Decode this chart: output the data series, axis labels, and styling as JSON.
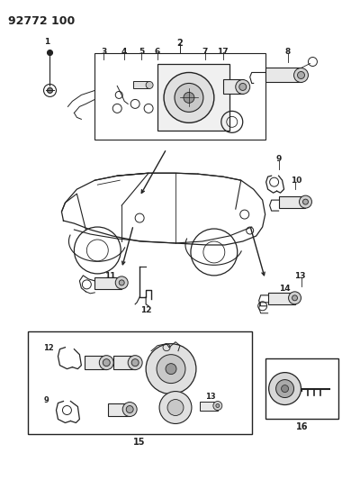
{
  "bg_color": "#ffffff",
  "fig_width": 3.9,
  "fig_height": 5.33,
  "dpi": 100,
  "header_text": "92772 100",
  "line_color": "#222222",
  "label_fontsize": 6.5,
  "header_fontsize": 9
}
